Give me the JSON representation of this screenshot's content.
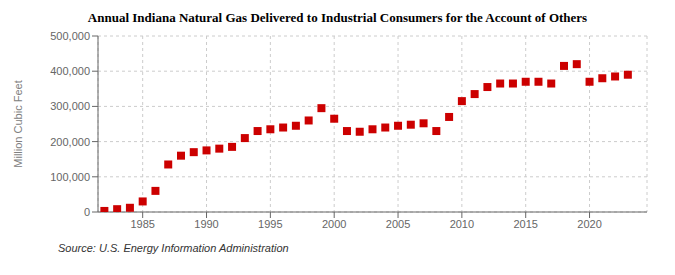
{
  "chart_data": {
    "type": "scatter",
    "title": "Annual Indiana Natural Gas Delivered to Industrial Consumers for the Account of Others",
    "y_label": "Million Cubic Feet",
    "annotations": [
      "Source: U.S. Energy Information Administration"
    ],
    "x": [
      1982,
      1983,
      1984,
      1985,
      1986,
      1987,
      1988,
      1989,
      1990,
      1991,
      1992,
      1993,
      1994,
      1995,
      1996,
      1997,
      1998,
      1999,
      2000,
      2001,
      2002,
      2003,
      2004,
      2005,
      2006,
      2007,
      2008,
      2009,
      2010,
      2011,
      2012,
      2013,
      2014,
      2015,
      2016,
      2017,
      2018,
      2019,
      2020,
      2021,
      2022,
      2023
    ],
    "values": [
      3000,
      8000,
      12000,
      30000,
      60000,
      135000,
      160000,
      170000,
      175000,
      180000,
      185000,
      210000,
      230000,
      235000,
      240000,
      245000,
      260000,
      295000,
      265000,
      230000,
      228000,
      235000,
      240000,
      245000,
      248000,
      252000,
      230000,
      270000,
      315000,
      335000,
      355000,
      365000,
      365000,
      370000,
      370000,
      365000,
      415000,
      420000,
      370000,
      380000,
      385000,
      390000
    ],
    "color": "#cc0000",
    "marker": "square",
    "xlim": [
      1981.5,
      2024.5
    ],
    "xticks": [
      1985,
      1990,
      1995,
      2000,
      2005,
      2010,
      2015,
      2020
    ],
    "ylim": [
      0,
      500000
    ],
    "yticks": [
      0,
      {
        "value": 100000,
        "label": "100,000"
      },
      {
        "value": 200000,
        "label": "200,000"
      },
      {
        "value": 300000,
        "label": "300,000"
      },
      {
        "value": 400000,
        "label": "400,000"
      },
      {
        "value": 500000,
        "label": "500,000"
      }
    ],
    "grid": true
  }
}
